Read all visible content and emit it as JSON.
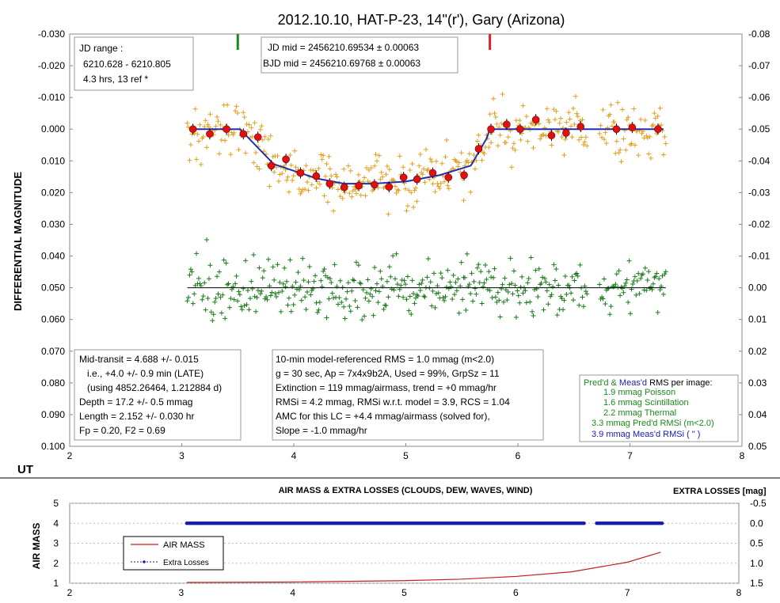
{
  "chart_data": [
    {
      "type": "scatter",
      "title": "2012.10.10, HAT-P-23,  14\"(r'), Gary (Arizona)",
      "xlabel": "UT",
      "ylabel": "DIFFERENTIAL  MAGNITUDE",
      "xlim": [
        2,
        8
      ],
      "ylim": [
        -0.03,
        0.1
      ],
      "y_reversed": true,
      "x_ticks": [
        "2",
        "3",
        "4",
        "5",
        "6",
        "7",
        "8"
      ],
      "y_ticks": [
        "-0.030",
        "-0.020",
        "-0.010",
        "0.000",
        "0.010",
        "0.020",
        "0.030",
        "0.040",
        "0.050",
        "0.060",
        "0.070",
        "0.080",
        "0.090",
        "0.100"
      ],
      "y2_ticks": [
        "-0.08",
        "-0.07",
        "-0.06",
        "-0.05",
        "-0.04",
        "-0.03",
        "-0.02",
        "-0.01",
        "0.00",
        "0.01",
        "0.02",
        "0.03",
        "0.04",
        "0.05"
      ],
      "y2lim": [
        -0.08,
        0.05
      ],
      "grid": false,
      "markers": {
        "ingress_ut": 3.5,
        "egress_ut": 5.75,
        "ingress_color": "#1a8a1a",
        "egress_color": "#e02020"
      },
      "model": {
        "color": "#1f2fb0",
        "x": [
          3.1,
          3.52,
          3.82,
          4.2,
          4.45,
          4.7,
          5.0,
          5.3,
          5.58,
          5.72,
          5.75,
          7.3
        ],
        "y": [
          0.0,
          0.0,
          0.011,
          0.0155,
          0.0172,
          0.0172,
          0.0165,
          0.0145,
          0.0115,
          0.003,
          0.0,
          0.0
        ]
      },
      "binned": {
        "color": "#e01010",
        "x": [
          3.1,
          3.25,
          3.4,
          3.55,
          3.68,
          3.8,
          3.93,
          4.06,
          4.2,
          4.32,
          4.45,
          4.58,
          4.72,
          4.85,
          4.98,
          5.1,
          5.24,
          5.38,
          5.52,
          5.65,
          5.76,
          5.9,
          6.02,
          6.16,
          6.3,
          6.43,
          6.56,
          6.88,
          7.02,
          7.25
        ],
        "y": [
          0.0,
          0.0015,
          0.0,
          0.0015,
          0.0025,
          0.0115,
          0.0095,
          0.0138,
          0.0148,
          0.0172,
          0.0183,
          0.0178,
          0.0175,
          0.0182,
          0.0152,
          0.0158,
          0.0138,
          0.0152,
          0.0145,
          0.0062,
          0.0,
          -0.0015,
          0.0,
          -0.003,
          0.002,
          0.0012,
          -0.0008,
          0.0,
          -0.0005,
          0.0
        ]
      },
      "raw_points": {
        "color": "#e0a020",
        "count_approx": 420,
        "ut_range": [
          3.05,
          7.32
        ],
        "scatter_mmag": 4.2
      },
      "residuals": {
        "color": "#1a7a1a",
        "offset_mag": 0.05,
        "ut_range": [
          3.05,
          7.32
        ],
        "scatter_mmag": 4.2
      }
    },
    {
      "type": "line",
      "title": "AIR MASS & EXTRA LOSSES (CLOUDS, DEW, WAVES, WIND)",
      "ylabel": "AIR MASS",
      "y2label": "EXTRA LOSSES [mag]",
      "xlim": [
        2,
        8
      ],
      "ylim": [
        1,
        5
      ],
      "y2lim": [
        1.5,
        -0.5
      ],
      "x_ticks": [
        "2",
        "3",
        "4",
        "5",
        "6",
        "7",
        "8"
      ],
      "y_ticks": [
        "1",
        "2",
        "3",
        "4",
        "5"
      ],
      "y2_ticks": [
        "1.5",
        "1.0",
        "0.5",
        "0.0",
        "-0.5"
      ],
      "series": [
        {
          "name": "AIR MASS",
          "color": "#c02020",
          "x": [
            3.05,
            4.0,
            5.0,
            5.5,
            6.0,
            6.5,
            7.0,
            7.3
          ],
          "values": [
            1.04,
            1.06,
            1.13,
            1.2,
            1.34,
            1.57,
            2.05,
            2.55
          ]
        },
        {
          "name": "Extra Losses",
          "color": "#1a1ab0",
          "x": [
            3.05,
            7.32
          ],
          "values": [
            0.0,
            0.0
          ]
        }
      ]
    }
  ],
  "boxes": {
    "jd_range": [
      "JD range :",
      "6210.628 - 6210.805",
      "4.3 hrs, 13 ref *"
    ],
    "jd_mid": [
      "JD mid = 2456210.69534 ± 0.00063",
      "BJD mid = 2456210.69768 ± 0.00063"
    ],
    "transit": [
      "Mid-transit = 4.688  +/- 0.015",
      "i.e., +4.0 +/- 0.9 min (LATE)",
      "(using 4852.26464,  1.212884  d)",
      "Depth = 17.2 +/- 0.5 mmag",
      "Length = 2.152 +/- 0.030 hr",
      "Fp = 0.20,  F2 = 0.69"
    ],
    "model": [
      "10-min model-referenced RMS = 1.0 mmag (m<2.0)",
      "g = 30 sec, Ap = 7x4x9b2A, Used = 99%, GrpSz = 11",
      "Extinction = 119  mmag/airmass, trend = +0 mmag/hr",
      "RMSi = 4.2 mmag, RMSi w.r.t. model = 3.9, RCS = 1.04",
      "AMC for this LC = +4.4 mmag/airmass (solved for),",
      "Slope = -1.0 mmag/hr"
    ],
    "rms_title_a": "Pred'd &",
    "rms_title_b": "Meas'd",
    "rms_title_c": "RMS  per image:",
    "rms": [
      "1.9  mmag Poisson",
      "1.6  mmag Scintillation",
      "2.2  mmag Thermal",
      "3.3  mmag Pred'd  RMSi  (m<2.0)"
    ],
    "rms_last": "3.9 mmag Meas'd RMSi  (      \"     )"
  },
  "colors": {
    "raw": "#e0a020",
    "resid": "#1a7a1a",
    "binned": "#e01010",
    "model": "#1f2fb0",
    "rms_green": "#1a8a1a",
    "rms_blue": "#1a1ab0"
  }
}
